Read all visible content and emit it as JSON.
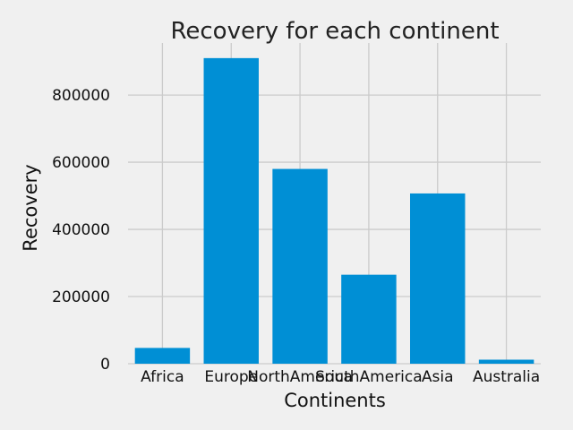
{
  "chart_data": {
    "type": "bar",
    "title": "Recovery for each continent",
    "xlabel": "Continents",
    "ylabel": "Recovery",
    "categories": [
      "Africa",
      "Europe",
      "NorthAmerica",
      "SouthAmerica",
      "Asia",
      "Australia"
    ],
    "values": [
      47000,
      910000,
      580000,
      265000,
      507000,
      12000
    ],
    "ylim": [
      0,
      955000
    ],
    "yticks": [
      0,
      200000,
      400000,
      600000,
      800000
    ],
    "grid": true,
    "bar_color": "#008fd5",
    "background": "#f0f0f0"
  }
}
